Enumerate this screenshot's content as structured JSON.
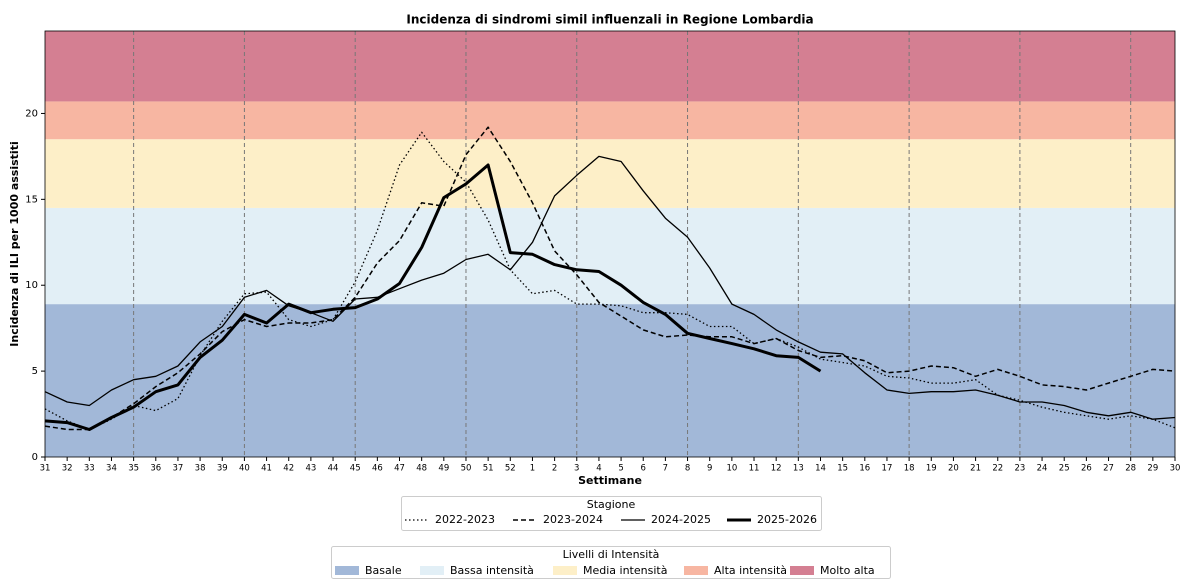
{
  "chart_data": {
    "type": "line",
    "title": "Incidenza di sindromi simil influenzali in Regione Lombardia",
    "x_label": "Settimane",
    "y_label": "Incidenza di ILI per 1000 assistiti",
    "categories": [
      "31",
      "32",
      "33",
      "34",
      "35",
      "36",
      "37",
      "38",
      "39",
      "40",
      "41",
      "42",
      "43",
      "44",
      "45",
      "46",
      "47",
      "48",
      "49",
      "50",
      "51",
      "52",
      "1",
      "2",
      "3",
      "4",
      "5",
      "6",
      "7",
      "8",
      "9",
      "10",
      "11",
      "12",
      "13",
      "14",
      "15",
      "16",
      "17",
      "18",
      "19",
      "20",
      "21",
      "22",
      "23",
      "24",
      "25",
      "26",
      "27",
      "28",
      "29",
      "30"
    ],
    "ylim": [
      0,
      24.8
    ],
    "yticks": [
      0,
      5,
      10,
      15,
      20
    ],
    "legend_title": "Stagione",
    "series": [
      {
        "name": "2022-2023",
        "color": "#000000",
        "style": "dotted",
        "width": 1.3,
        "values": [
          2.8,
          2.1,
          1.6,
          2.2,
          3.0,
          2.7,
          3.4,
          5.9,
          7.9,
          9.5,
          9.6,
          8.0,
          7.6,
          8.0,
          10.2,
          13.2,
          17.0,
          18.9,
          17.2,
          16.0,
          13.8,
          10.9,
          9.5,
          9.7,
          8.9,
          8.9,
          8.8,
          8.4,
          8.4,
          8.3,
          7.6,
          7.6,
          6.6,
          6.9,
          6.4,
          5.7,
          5.5,
          5.3,
          4.7,
          4.6,
          4.3,
          4.3,
          4.5,
          3.6,
          3.3,
          2.9,
          2.6,
          2.4,
          2.2,
          2.4,
          2.2,
          1.7
        ]
      },
      {
        "name": "2023-2024",
        "color": "#000000",
        "style": "dashed",
        "width": 1.5,
        "values": [
          1.8,
          1.6,
          1.6,
          2.3,
          3.1,
          4.1,
          4.9,
          6.0,
          7.3,
          8.0,
          7.6,
          7.8,
          7.8,
          8.0,
          9.3,
          11.3,
          12.6,
          14.8,
          14.6,
          17.6,
          19.2,
          17.2,
          14.8,
          12.0,
          10.6,
          9.0,
          8.2,
          7.4,
          7.0,
          7.1,
          7.0,
          7.0,
          6.6,
          6.9,
          6.2,
          5.8,
          5.9,
          5.6,
          4.9,
          5.0,
          5.3,
          5.2,
          4.7,
          5.1,
          4.7,
          4.2,
          4.1,
          3.9,
          4.3,
          4.7,
          5.1,
          5.0
        ]
      },
      {
        "name": "2024-2025",
        "color": "#000000",
        "style": "solid",
        "width": 1.3,
        "values": [
          3.8,
          3.2,
          3.0,
          3.9,
          4.5,
          4.7,
          5.3,
          6.7,
          7.6,
          9.3,
          9.7,
          8.8,
          8.4,
          7.9,
          9.2,
          9.3,
          9.8,
          10.3,
          10.7,
          11.5,
          11.8,
          10.9,
          12.5,
          15.2,
          16.4,
          17.5,
          17.2,
          15.5,
          13.9,
          12.8,
          11.0,
          8.9,
          8.3,
          7.4,
          6.7,
          6.1,
          6.0,
          4.9,
          3.9,
          3.7,
          3.8,
          3.8,
          3.9,
          3.6,
          3.2,
          3.2,
          3.0,
          2.6,
          2.4,
          2.6,
          2.2,
          2.3
        ]
      },
      {
        "name": "2025-2026",
        "color": "#000000",
        "style": "solid",
        "width": 3,
        "values": [
          2.1,
          2.0,
          1.6,
          2.3,
          2.9,
          3.8,
          4.2,
          5.8,
          6.8,
          8.3,
          7.8,
          8.9,
          8.4,
          8.6,
          8.7,
          9.2,
          10.1,
          12.2,
          15.1,
          15.9,
          17.0,
          11.9,
          11.8,
          11.2,
          10.9,
          10.8,
          10.0,
          9.0,
          8.3,
          7.2,
          6.9,
          6.6,
          6.3,
          5.9,
          5.8,
          5.0,
          null,
          null,
          null,
          null,
          null,
          null,
          null,
          null,
          null,
          null,
          null,
          null,
          null,
          null,
          null,
          null
        ]
      }
    ],
    "bands_title": "Livelli di Intensità",
    "bands": [
      {
        "name": "Basale",
        "color": "#a2b8d8",
        "from": 0,
        "to": 8.9
      },
      {
        "name": "Bassa intensità",
        "color": "#e2eff6",
        "from": 8.9,
        "to": 14.5
      },
      {
        "name": "Media intensità",
        "color": "#fdefc8",
        "from": 14.5,
        "to": 18.5
      },
      {
        "name": "Alta intensità",
        "color": "#f7b6a2",
        "from": 18.5,
        "to": 20.7
      },
      {
        "name": "Molto alta",
        "color": "#d47f92",
        "from": 20.7,
        "to": 24.8
      }
    ]
  }
}
